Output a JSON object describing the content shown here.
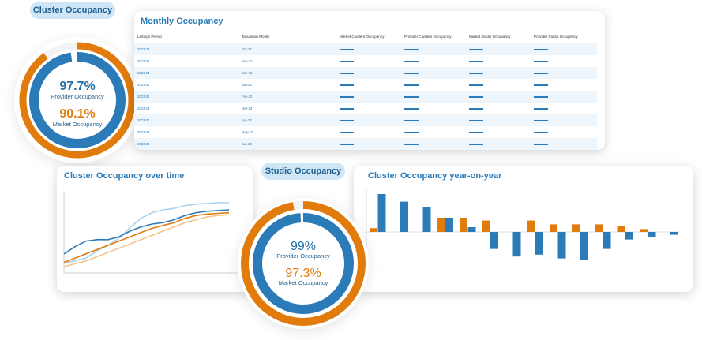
{
  "cluster_occupancy": {
    "pill_label": "Cluster Occupancy",
    "provider_value": "97.7%",
    "provider_label": "Provider Occupancy",
    "market_value": "90.1%",
    "market_label": "Market Occupancy",
    "provider_fraction": 0.977,
    "market_fraction": 0.901
  },
  "monthly_occupancy": {
    "title": "Monthly Occupancy",
    "columns": [
      "Lettings Period",
      "Tabulation Month",
      "Market Clusters Occupancy",
      "Provider Clusters Occupancy",
      "Market Studio Occupancy",
      "Provider Studio Occupancy"
    ],
    "rows": [
      {
        "period": "2023-24",
        "month": "Oct-22"
      },
      {
        "period": "2023-24",
        "month": "Nov-22"
      },
      {
        "period": "2023-24",
        "month": "Dec-22"
      },
      {
        "period": "2023-24",
        "month": "Jan-23"
      },
      {
        "period": "2023-24",
        "month": "Feb-23"
      },
      {
        "period": "2023-24",
        "month": "Mar-23"
      },
      {
        "period": "2023-24",
        "month": "Apr-23"
      },
      {
        "period": "2023-24",
        "month": "May-23"
      },
      {
        "period": "2023-24",
        "month": "Jun-23"
      }
    ]
  },
  "studio_occupancy": {
    "pill_label": "Studio Occupancy",
    "provider_value": "99%",
    "provider_label": "Provider Occupancy",
    "market_value": "97.3%",
    "market_label": "Market Occupancy",
    "provider_fraction": 0.99,
    "market_fraction": 0.973
  },
  "colors": {
    "blue": "#2b7bb9",
    "orange": "#e07b0c",
    "light_blue": "#a9d2ee",
    "light_orange": "#f5c48a"
  },
  "chart_data": [
    {
      "type": "line",
      "title": "Cluster Occupancy over time",
      "grid": false,
      "series": [
        {
          "color": "#a9d2ee",
          "values": [
            0.05,
            0.08,
            0.12,
            0.22,
            0.3,
            0.4,
            0.55,
            0.68,
            0.76,
            0.8,
            0.82,
            0.86,
            0.88,
            0.89,
            0.9,
            0.9
          ]
        },
        {
          "color": "#2b7bb9",
          "values": [
            0.18,
            0.28,
            0.36,
            0.38,
            0.38,
            0.42,
            0.5,
            0.56,
            0.6,
            0.62,
            0.66,
            0.72,
            0.76,
            0.78,
            0.79,
            0.8
          ]
        },
        {
          "color": "#e07b0c",
          "values": [
            0.06,
            0.12,
            0.18,
            0.24,
            0.3,
            0.36,
            0.42,
            0.48,
            0.54,
            0.58,
            0.62,
            0.68,
            0.72,
            0.74,
            0.75,
            0.76
          ]
        },
        {
          "color": "#f5c48a",
          "values": [
            0.0,
            0.04,
            0.08,
            0.14,
            0.2,
            0.26,
            0.32,
            0.38,
            0.44,
            0.5,
            0.56,
            0.62,
            0.66,
            0.7,
            0.72,
            0.73
          ]
        }
      ]
    },
    {
      "type": "bar",
      "title": "Cluster Occupancy year-on-year",
      "grid": false,
      "series": [
        {
          "color": "#e07b0c",
          "values": [
            0.4,
            0.0,
            0.0,
            1.5,
            1.5,
            1.2,
            0.0,
            1.2,
            0.8,
            0.8,
            0.8,
            0.6,
            0.3,
            0.0,
            0.1
          ]
        },
        {
          "color": "#2b7bb9",
          "values": [
            4.0,
            3.2,
            2.6,
            1.5,
            0.5,
            -1.8,
            -2.6,
            -2.4,
            -2.8,
            -3.0,
            -1.8,
            -0.8,
            -0.5,
            -0.3,
            -0.3
          ]
        }
      ]
    }
  ]
}
